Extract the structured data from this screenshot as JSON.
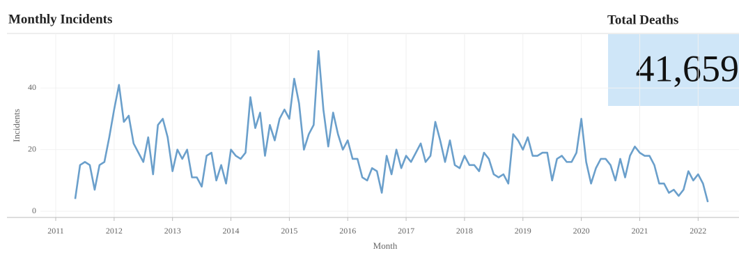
{
  "chart_data": {
    "type": "line",
    "title": "Monthly Incidents",
    "ylabel": "Incidents",
    "xlabel": "Month",
    "x": [
      "2011-05",
      "2011-06",
      "2011-07",
      "2011-08",
      "2011-09",
      "2011-10",
      "2011-11",
      "2011-12",
      "2012-01",
      "2012-02",
      "2012-03",
      "2012-04",
      "2012-05",
      "2012-06",
      "2012-07",
      "2012-08",
      "2012-09",
      "2012-10",
      "2012-11",
      "2012-12",
      "2013-01",
      "2013-02",
      "2013-03",
      "2013-04",
      "2013-05",
      "2013-06",
      "2013-07",
      "2013-08",
      "2013-09",
      "2013-10",
      "2013-11",
      "2013-12",
      "2014-01",
      "2014-02",
      "2014-03",
      "2014-04",
      "2014-05",
      "2014-06",
      "2014-07",
      "2014-08",
      "2014-09",
      "2014-10",
      "2014-11",
      "2014-12",
      "2015-01",
      "2015-02",
      "2015-03",
      "2015-04",
      "2015-05",
      "2015-06",
      "2015-07",
      "2015-08",
      "2015-09",
      "2015-10",
      "2015-11",
      "2015-12",
      "2016-01",
      "2016-02",
      "2016-03",
      "2016-04",
      "2016-05",
      "2016-06",
      "2016-07",
      "2016-08",
      "2016-09",
      "2016-10",
      "2016-11",
      "2016-12",
      "2017-01",
      "2017-02",
      "2017-03",
      "2017-04",
      "2017-05",
      "2017-06",
      "2017-07",
      "2017-08",
      "2017-09",
      "2017-10",
      "2017-11",
      "2017-12",
      "2018-01",
      "2018-02",
      "2018-03",
      "2018-04",
      "2018-05",
      "2018-06",
      "2018-07",
      "2018-08",
      "2018-09",
      "2018-10",
      "2018-11",
      "2018-12",
      "2019-01",
      "2019-02",
      "2019-03",
      "2019-04",
      "2019-05",
      "2019-06",
      "2019-07",
      "2019-08",
      "2019-09",
      "2019-10",
      "2019-11",
      "2019-12",
      "2020-01",
      "2020-02",
      "2020-03",
      "2020-04",
      "2020-05",
      "2020-06",
      "2020-07",
      "2020-08",
      "2020-09",
      "2020-10",
      "2020-11",
      "2020-12",
      "2021-01",
      "2021-02",
      "2021-03",
      "2021-04",
      "2021-05",
      "2021-06",
      "2021-07",
      "2021-08",
      "2021-09",
      "2021-10",
      "2021-11",
      "2021-12",
      "2022-01",
      "2022-02",
      "2022-03"
    ],
    "values": [
      4,
      15,
      16,
      15,
      7,
      15,
      16,
      24,
      33,
      41,
      29,
      31,
      22,
      19,
      16,
      24,
      12,
      28,
      30,
      24,
      13,
      20,
      17,
      20,
      11,
      11,
      8,
      18,
      19,
      10,
      15,
      9,
      20,
      18,
      17,
      19,
      37,
      27,
      32,
      18,
      28,
      23,
      30,
      33,
      30,
      43,
      35,
      20,
      25,
      28,
      52,
      33,
      21,
      32,
      25,
      20,
      23,
      17,
      17,
      11,
      10,
      14,
      13,
      6,
      18,
      12,
      20,
      14,
      18,
      16,
      19,
      22,
      16,
      18,
      29,
      23,
      16,
      23,
      15,
      14,
      18,
      15,
      15,
      13,
      19,
      17,
      12,
      11,
      12,
      9,
      25,
      23,
      20,
      24,
      18,
      18,
      19,
      19,
      10,
      17,
      18,
      16,
      16,
      19,
      30,
      16,
      9,
      14,
      17,
      17,
      15,
      10,
      17,
      11,
      18,
      21,
      19,
      18,
      18,
      15,
      9,
      9,
      6,
      7,
      5,
      7,
      13,
      10,
      12,
      9,
      3
    ],
    "color": "#6a9fcb",
    "xlim": [
      2010.165,
      2022.7
    ],
    "xticks": [
      2011,
      2012,
      2013,
      2014,
      2015,
      2016,
      2017,
      2018,
      2019,
      2020,
      2021,
      2022
    ],
    "ylim": [
      -2,
      57
    ],
    "yticks": [
      0,
      20,
      40
    ],
    "grid": true
  },
  "kpi": {
    "title": "Total Deaths",
    "value": "41,659"
  }
}
